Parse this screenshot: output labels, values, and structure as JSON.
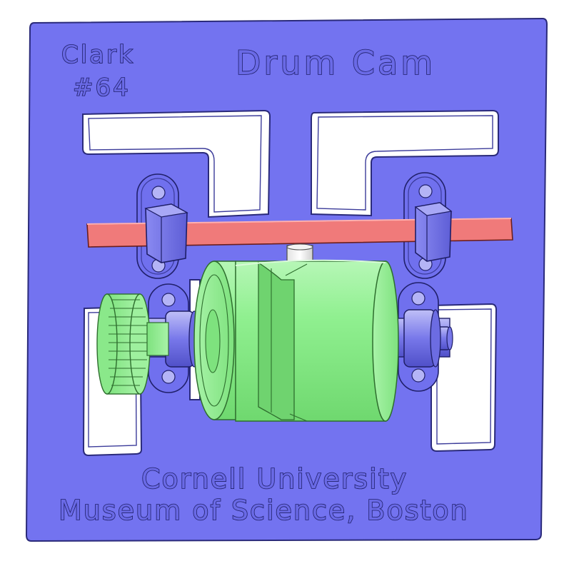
{
  "plate": {
    "model_label_line1": "Clark",
    "model_label_line2": "#64",
    "title": "Drum Cam",
    "credit_line1": "Cornell University",
    "credit_line2": "Museum of Science, Boston"
  },
  "colors": {
    "plate": "#7373f0",
    "plate_edge": "#2a2a7a",
    "follower_bar": "#f07a7a",
    "drum": "#8af08a",
    "drum_edge": "#2e6e2e",
    "follower_pin": "#f2f2f2",
    "background": "#ffffff"
  }
}
